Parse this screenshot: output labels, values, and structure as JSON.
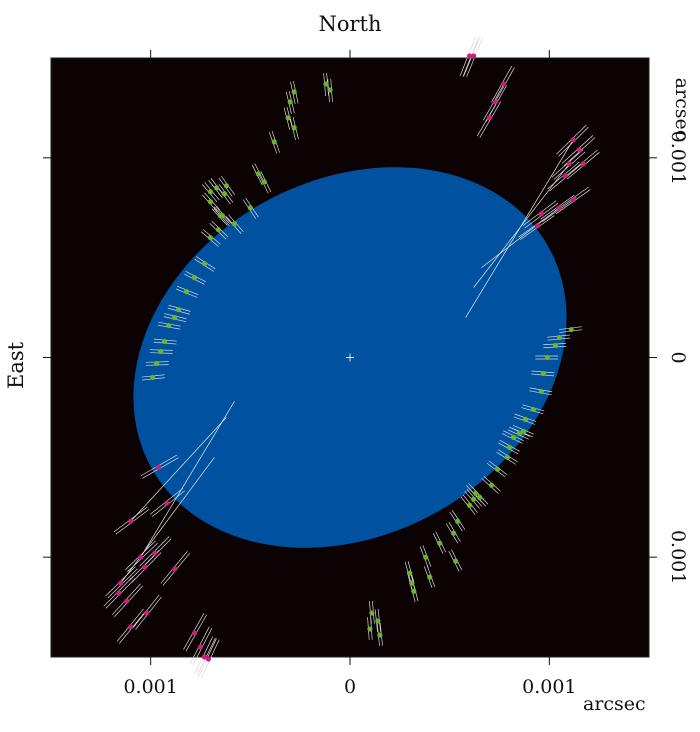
{
  "chart_data": {
    "type": "scatter",
    "title": "",
    "top_label": "North",
    "left_label": "East",
    "x_unit_label": "arcsec",
    "y_unit_label": "arcsec",
    "x_ticks": [
      {
        "value": -0.001,
        "label": "0.001"
      },
      {
        "value": 0,
        "label": "0"
      },
      {
        "value": 0.001,
        "label": "0.001"
      }
    ],
    "y_ticks": [
      {
        "value": 0.001,
        "label": "0.001"
      },
      {
        "value": 0,
        "label": "0"
      },
      {
        "value": -0.001,
        "label": "0.001"
      }
    ],
    "xlim": [
      -0.0015,
      0.0015
    ],
    "ylim": [
      -0.0015,
      0.0015
    ],
    "background_color": "#0b0203",
    "ellipse": {
      "color": "#0052a0",
      "center": [
        0,
        0
      ],
      "semi_major": 0.00114,
      "semi_minor": 0.00089,
      "angle_deg": 29
    },
    "center_marker": {
      "x": 0,
      "y": 0,
      "color": "#e0e0e0"
    },
    "series": [
      {
        "color": "#6ab42f",
        "marker": "circle",
        "points": [
          [
            -0.00082,
            0.00033
          ],
          [
            -0.00078,
            0.0004
          ],
          [
            -0.00073,
            0.00047
          ],
          [
            -0.00086,
            0.00024
          ],
          [
            -0.0007,
            0.0006
          ],
          [
            -0.00066,
            0.00064
          ],
          [
            -0.00065,
            0.00071
          ],
          [
            -0.0007,
            0.00078
          ],
          [
            -0.00062,
            0.00086
          ],
          [
            -0.0007,
            0.00083
          ],
          [
            -0.00064,
            0.00071
          ],
          [
            -0.00058,
            0.00067
          ],
          [
            -0.0005,
            0.00075
          ],
          [
            -0.00046,
            0.00092
          ],
          [
            -0.00043,
            0.00088
          ],
          [
            -0.00063,
            0.00082
          ],
          [
            -0.00067,
            0.00085
          ],
          [
            -0.00038,
            0.00108
          ],
          [
            -0.00031,
            0.0012
          ],
          [
            -0.00028,
            0.00115
          ],
          [
            -0.00012,
            0.00137
          ],
          [
            -0.0001,
            0.00134
          ],
          [
            -0.00028,
            0.00133
          ],
          [
            -0.0003,
            0.00128
          ],
          [
            -0.00095,
            3e-05
          ],
          [
            -0.00097,
            -3e-05
          ],
          [
            -0.00099,
            -0.0001
          ],
          [
            -0.00093,
            8e-05
          ],
          [
            -0.00091,
            0.00016
          ],
          [
            -0.00088,
            0.0002
          ],
          [
            0.00111,
            0.00014
          ],
          [
            0.00105,
            0.0001
          ],
          [
            0.00103,
            6e-05
          ],
          [
            0.00097,
            -8e-05
          ],
          [
            0.00099,
            0.0
          ],
          [
            0.00096,
            -0.00017
          ],
          [
            0.00092,
            -0.00026
          ],
          [
            0.00088,
            -0.00031
          ],
          [
            0.00087,
            -0.00037
          ],
          [
            0.00082,
            -0.0004
          ],
          [
            0.0008,
            -0.00045
          ],
          [
            0.00079,
            -0.0005
          ],
          [
            0.00074,
            -0.00056
          ],
          [
            0.00071,
            -0.00064
          ],
          [
            0.00065,
            -0.0007
          ],
          [
            0.00063,
            -0.00068
          ],
          [
            0.0006,
            -0.00074
          ],
          [
            0.00054,
            -0.00082
          ],
          [
            0.00052,
            -0.00088
          ],
          [
            0.00045,
            -0.00093
          ],
          [
            0.00053,
            -0.00102
          ],
          [
            0.0004,
            -0.0011
          ],
          [
            0.00038,
            -0.001
          ],
          [
            0.0003,
            -0.00108
          ],
          [
            0.00031,
            -0.00113
          ],
          [
            0.00032,
            -0.00117
          ],
          [
            0.00014,
            -0.00132
          ],
          [
            0.00011,
            -0.00128
          ],
          [
            0.00015,
            -0.00139
          ],
          [
            0.0001,
            -0.00136
          ],
          [
            0.00062,
            -0.00071
          ],
          [
            0.00085,
            -0.00038
          ]
        ]
      },
      {
        "color": "#c8207c",
        "marker": "circle",
        "points": [
          [
            -0.00105,
            -0.001
          ],
          [
            -0.0011,
            -0.00082
          ],
          [
            -0.00115,
            -0.00113
          ],
          [
            -0.00103,
            -0.00105
          ],
          [
            -0.00096,
            -0.00055
          ],
          [
            -0.00092,
            -0.00073
          ],
          [
            -0.00098,
            -0.00098
          ],
          [
            -0.00088,
            -0.00106
          ],
          [
            -0.00078,
            -0.00138
          ],
          [
            -0.00073,
            -0.0015
          ],
          [
            -0.00071,
            -0.00151
          ],
          [
            -0.00075,
            -0.00145
          ],
          [
            -0.0011,
            -0.00135
          ],
          [
            -0.00112,
            -0.00122
          ],
          [
            -0.00116,
            -0.00118
          ],
          [
            -0.00102,
            -0.00128
          ],
          [
            0.00062,
            0.00151
          ],
          [
            0.0006,
            0.00151
          ],
          [
            0.00077,
            0.00137
          ],
          [
            0.00073,
            0.00128
          ],
          [
            0.0007,
            0.0012
          ],
          [
            0.00112,
            0.00109
          ],
          [
            0.00115,
            0.00104
          ],
          [
            0.0011,
            0.00097
          ],
          [
            0.00108,
            0.00091
          ],
          [
            0.00094,
            0.00066
          ],
          [
            0.00096,
            0.00072
          ],
          [
            0.00105,
            0.00075
          ],
          [
            0.00112,
            0.00079
          ],
          [
            0.00117,
            0.00097
          ]
        ]
      }
    ]
  }
}
